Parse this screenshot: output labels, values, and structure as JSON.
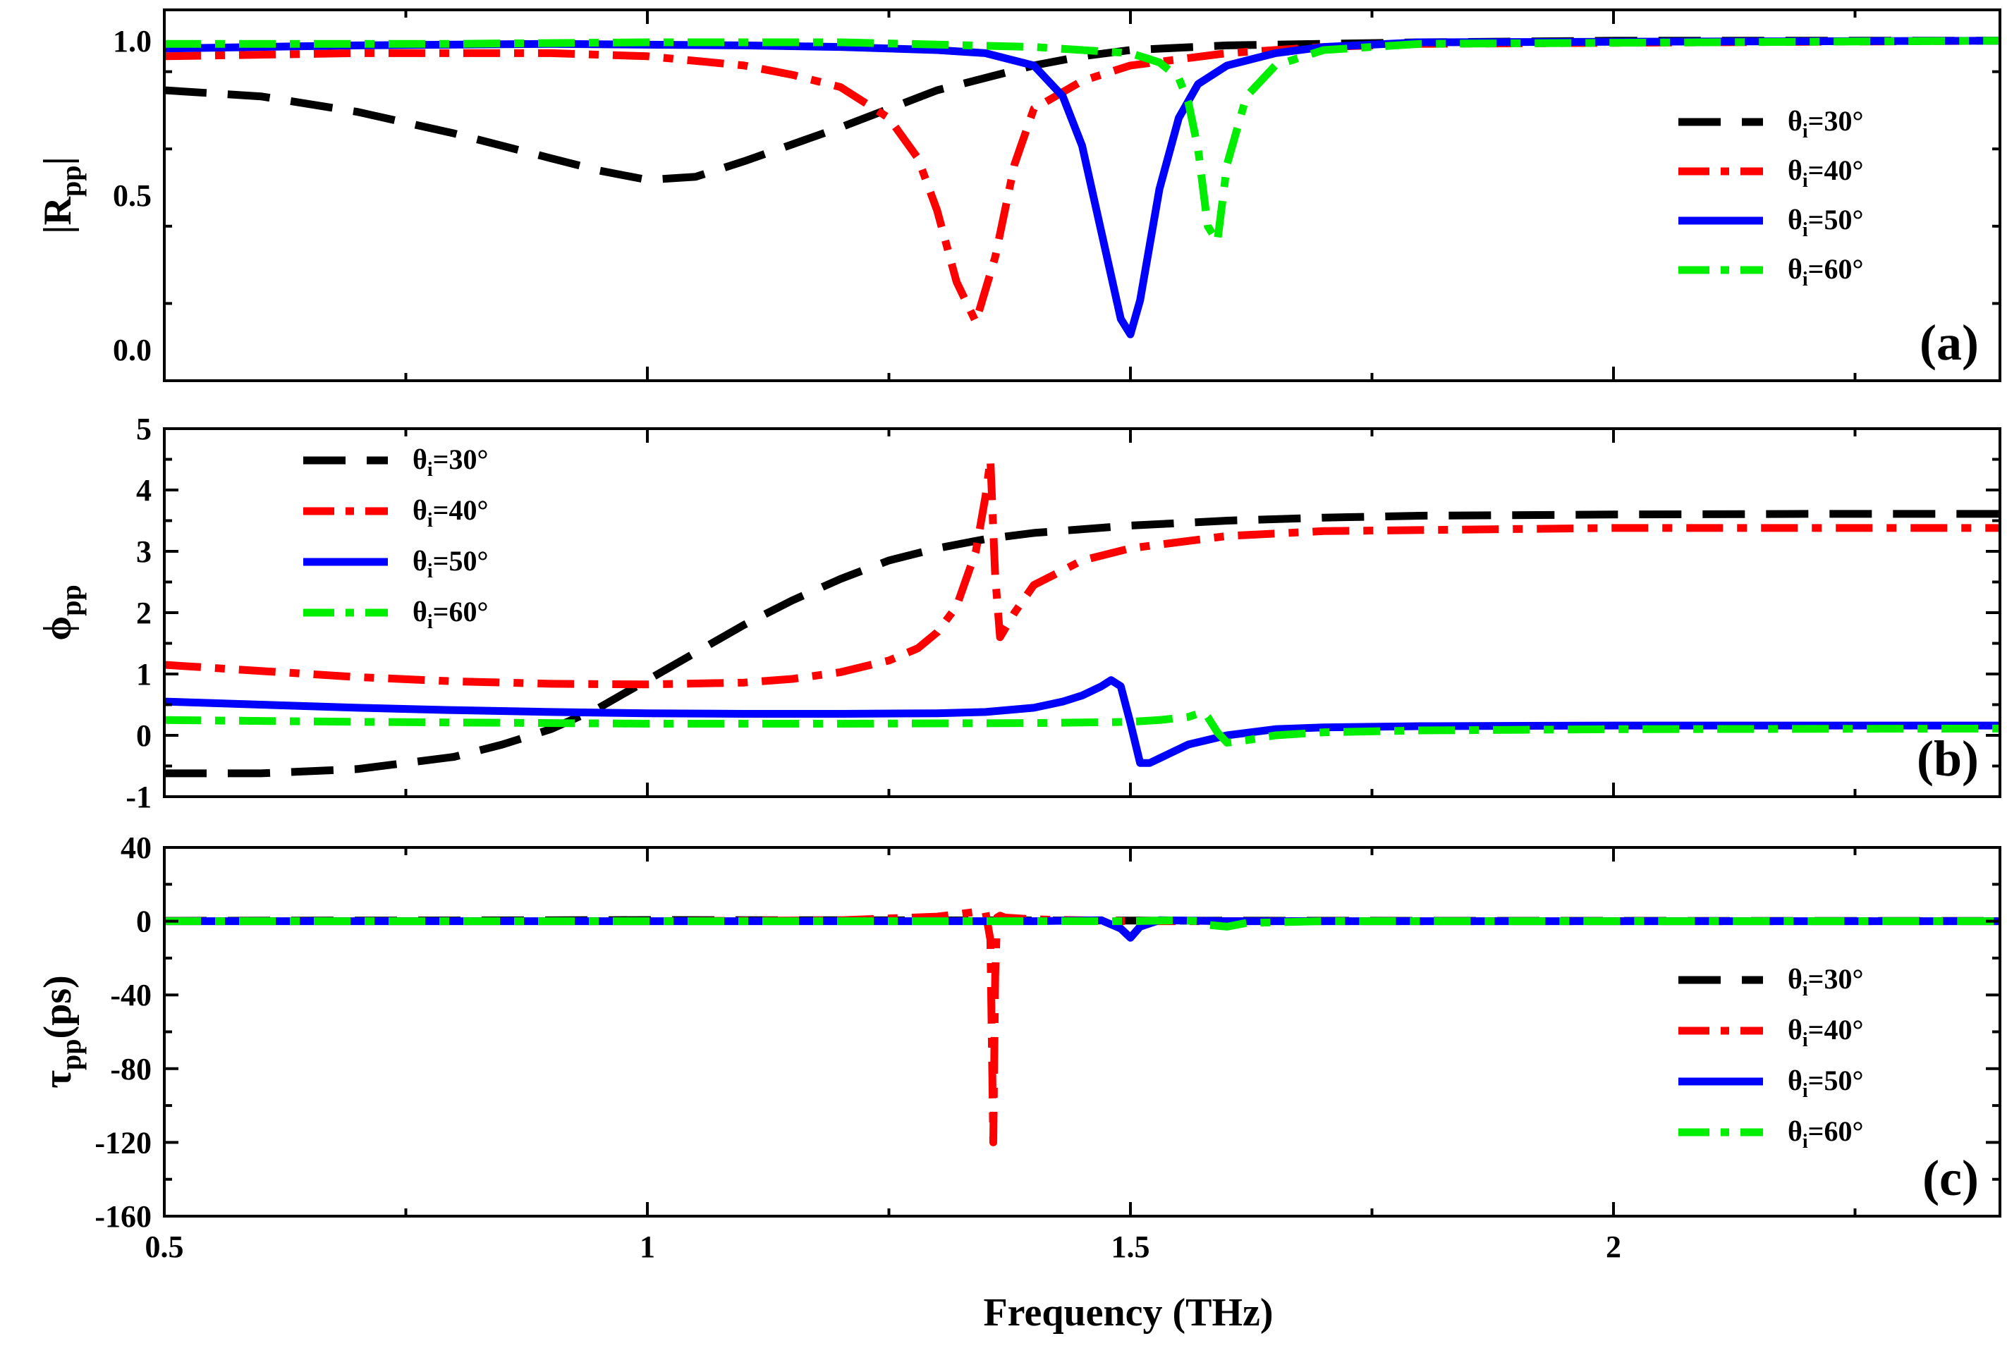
{
  "figure": {
    "xlabel": "Frequency (THz)",
    "colors": {
      "theta30": "#000000",
      "theta40": "#ff0000",
      "theta50": "#0000ff",
      "theta60": "#00ee00"
    }
  },
  "chart_data": [
    {
      "id": "a",
      "type": "line",
      "panel_label": "(a)",
      "ylabel": "|R",
      "ylabel_sub": "pp",
      "ylabel_suffix": "|",
      "xlabel": "Frequency (THz)",
      "xlim": [
        0.5,
        2.4
      ],
      "ylim": [
        -0.1,
        1.1
      ],
      "yticks": [
        0.0,
        0.5,
        1.0
      ],
      "ytick_labels": [
        "0.0",
        "0.5",
        "1.0"
      ],
      "legend": {
        "placement": "right",
        "entries": [
          {
            "series": "theta30",
            "text": "θ",
            "sub": "i",
            "value": "=30°"
          },
          {
            "series": "theta40",
            "text": "θ",
            "sub": "i",
            "value": "=40°"
          },
          {
            "series": "theta50",
            "text": "θ",
            "sub": "i",
            "value": "=50°"
          },
          {
            "series": "theta60",
            "text": "θ",
            "sub": "i",
            "value": "=60°"
          }
        ]
      },
      "series": [
        {
          "name": "θi=30°",
          "key": "theta30",
          "style": "dash",
          "x": [
            0.5,
            0.6,
            0.7,
            0.8,
            0.9,
            0.95,
            1.0,
            1.05,
            1.1,
            1.2,
            1.3,
            1.4,
            1.45,
            1.5,
            1.6,
            1.7,
            1.8,
            2.0,
            2.4
          ],
          "y": [
            0.84,
            0.82,
            0.77,
            0.7,
            0.62,
            0.58,
            0.55,
            0.56,
            0.61,
            0.72,
            0.84,
            0.92,
            0.95,
            0.97,
            0.985,
            0.99,
            0.995,
            1.0,
            1.0
          ]
        },
        {
          "name": "θi=40°",
          "key": "theta40",
          "style": "dashdot",
          "x": [
            0.5,
            0.7,
            0.9,
            1.0,
            1.1,
            1.15,
            1.2,
            1.25,
            1.28,
            1.3,
            1.32,
            1.34,
            1.36,
            1.38,
            1.4,
            1.45,
            1.5,
            1.6,
            1.7,
            1.8,
            2.4
          ],
          "y": [
            0.95,
            0.96,
            0.96,
            0.95,
            0.92,
            0.89,
            0.85,
            0.75,
            0.62,
            0.45,
            0.22,
            0.09,
            0.3,
            0.6,
            0.78,
            0.87,
            0.92,
            0.96,
            0.98,
            0.99,
            1.0
          ]
        },
        {
          "name": "θi=50°",
          "key": "theta50",
          "style": "solid",
          "x": [
            0.5,
            0.7,
            0.9,
            1.1,
            1.2,
            1.3,
            1.35,
            1.4,
            1.43,
            1.45,
            1.47,
            1.49,
            1.5,
            1.51,
            1.53,
            1.55,
            1.57,
            1.6,
            1.65,
            1.7,
            1.8,
            2.4
          ],
          "y": [
            0.975,
            0.985,
            0.99,
            0.985,
            0.98,
            0.97,
            0.96,
            0.92,
            0.82,
            0.66,
            0.38,
            0.1,
            0.05,
            0.16,
            0.52,
            0.75,
            0.86,
            0.92,
            0.96,
            0.98,
            0.995,
            1.0
          ]
        },
        {
          "name": "θi=60°",
          "key": "theta60",
          "style": "dashdot",
          "x": [
            0.5,
            0.8,
            1.0,
            1.2,
            1.4,
            1.5,
            1.53,
            1.55,
            1.56,
            1.57,
            1.58,
            1.59,
            1.6,
            1.62,
            1.65,
            1.7,
            1.8,
            2.4
          ],
          "y": [
            0.99,
            0.99,
            0.995,
            0.995,
            0.98,
            0.96,
            0.93,
            0.88,
            0.8,
            0.65,
            0.4,
            0.35,
            0.6,
            0.82,
            0.92,
            0.97,
            0.99,
            1.0
          ]
        }
      ]
    },
    {
      "id": "b",
      "type": "line",
      "panel_label": "(b)",
      "ylabel": "ϕ",
      "ylabel_sub": "pp",
      "ylabel_suffix": "",
      "xlabel": "Frequency (THz)",
      "xlim": [
        0.5,
        2.4
      ],
      "ylim": [
        -1,
        5
      ],
      "yticks": [
        -1,
        0,
        1,
        2,
        3,
        4,
        5
      ],
      "ytick_labels": [
        "-1",
        "0",
        "1",
        "2",
        "3",
        "4",
        "5"
      ],
      "legend": {
        "placement": "top-left",
        "entries": [
          {
            "series": "theta30",
            "text": "θ",
            "sub": "i",
            "value": "=30°"
          },
          {
            "series": "theta40",
            "text": "θ",
            "sub": "i",
            "value": "=40°"
          },
          {
            "series": "theta50",
            "text": "θ",
            "sub": "i",
            "value": "=50°"
          },
          {
            "series": "theta60",
            "text": "θ",
            "sub": "i",
            "value": "=60°"
          }
        ]
      },
      "series": [
        {
          "name": "θi=30°",
          "key": "theta30",
          "style": "dash",
          "x": [
            0.5,
            0.6,
            0.7,
            0.8,
            0.85,
            0.9,
            0.95,
            1.0,
            1.05,
            1.1,
            1.15,
            1.2,
            1.25,
            1.3,
            1.35,
            1.4,
            1.5,
            1.6,
            1.7,
            1.8,
            2.0,
            2.2,
            2.4
          ],
          "y": [
            -0.62,
            -0.62,
            -0.55,
            -0.35,
            -0.15,
            0.1,
            0.45,
            0.9,
            1.35,
            1.8,
            2.2,
            2.55,
            2.85,
            3.05,
            3.2,
            3.3,
            3.42,
            3.5,
            3.55,
            3.58,
            3.6,
            3.61,
            3.61
          ]
        },
        {
          "name": "θi=40°",
          "key": "theta40",
          "style": "dashdot",
          "x": [
            0.5,
            0.6,
            0.7,
            0.8,
            0.9,
            1.0,
            1.1,
            1.15,
            1.2,
            1.25,
            1.28,
            1.3,
            1.32,
            1.34,
            1.35,
            1.355,
            1.36,
            1.365,
            1.38,
            1.4,
            1.45,
            1.5,
            1.6,
            1.7,
            2.0,
            2.4
          ],
          "y": [
            1.15,
            1.05,
            0.95,
            0.88,
            0.84,
            0.83,
            0.86,
            0.92,
            1.03,
            1.22,
            1.42,
            1.68,
            2.1,
            3.0,
            3.9,
            4.5,
            2.6,
            1.6,
            2.0,
            2.45,
            2.85,
            3.05,
            3.25,
            3.33,
            3.38,
            3.38
          ]
        },
        {
          "name": "θi=50°",
          "key": "theta50",
          "style": "solid",
          "x": [
            0.5,
            0.6,
            0.7,
            0.8,
            0.9,
            1.0,
            1.1,
            1.2,
            1.3,
            1.35,
            1.4,
            1.43,
            1.45,
            1.47,
            1.48,
            1.49,
            1.5,
            1.51,
            1.52,
            1.54,
            1.56,
            1.6,
            1.65,
            1.7,
            1.8,
            2.0,
            2.4
          ],
          "y": [
            0.55,
            0.5,
            0.45,
            0.41,
            0.38,
            0.36,
            0.35,
            0.35,
            0.36,
            0.38,
            0.45,
            0.55,
            0.65,
            0.8,
            0.9,
            0.8,
            0.2,
            -0.45,
            -0.45,
            -0.3,
            -0.15,
            0.0,
            0.1,
            0.13,
            0.15,
            0.16,
            0.16
          ]
        },
        {
          "name": "θi=60°",
          "key": "theta60",
          "style": "dashdot",
          "x": [
            0.5,
            0.7,
            0.9,
            1.0,
            1.2,
            1.4,
            1.5,
            1.53,
            1.56,
            1.575,
            1.58,
            1.59,
            1.6,
            1.62,
            1.65,
            1.7,
            1.8,
            2.0,
            2.4
          ],
          "y": [
            0.25,
            0.22,
            0.2,
            0.19,
            0.19,
            0.2,
            0.22,
            0.25,
            0.3,
            0.38,
            0.3,
            0.05,
            -0.12,
            -0.08,
            0.0,
            0.05,
            0.08,
            0.1,
            0.11
          ]
        }
      ]
    },
    {
      "id": "c",
      "type": "line",
      "panel_label": "(c)",
      "ylabel": "τ",
      "ylabel_sub": "pp",
      "ylabel_suffix": "(ps)",
      "xlabel": "Frequency (THz)",
      "xlim": [
        0.5,
        2.4
      ],
      "ylim": [
        -160,
        40
      ],
      "yticks": [
        -160,
        -120,
        -80,
        -40,
        0,
        40
      ],
      "ytick_labels": [
        "-160",
        "-120",
        "-80",
        "-40",
        "0",
        "40"
      ],
      "xticks": [
        0.5,
        1,
        1.5,
        2
      ],
      "xtick_labels": [
        "0.5",
        "1",
        "1.5",
        "2"
      ],
      "legend": {
        "placement": "bottom-right",
        "entries": [
          {
            "series": "theta30",
            "text": "θ",
            "sub": "i",
            "value": "=30°"
          },
          {
            "series": "theta40",
            "text": "θ",
            "sub": "i",
            "value": "=40°"
          },
          {
            "series": "theta50",
            "text": "θ",
            "sub": "i",
            "value": "=50°"
          },
          {
            "series": "theta60",
            "text": "θ",
            "sub": "i",
            "value": "=60°"
          }
        ]
      },
      "series": [
        {
          "name": "θi=30°",
          "key": "theta30",
          "style": "dash",
          "x": [
            0.5,
            0.8,
            1.0,
            1.2,
            1.5,
            1.8,
            2.4
          ],
          "y": [
            0.2,
            0.4,
            0.6,
            0.5,
            0.3,
            0.2,
            0.1
          ]
        },
        {
          "name": "θi=40°",
          "key": "theta40",
          "style": "dashdot",
          "x": [
            0.5,
            1.0,
            1.2,
            1.3,
            1.34,
            1.35,
            1.355,
            1.358,
            1.36,
            1.362,
            1.365,
            1.37,
            1.4,
            1.5,
            2.4
          ],
          "y": [
            0,
            0,
            0.5,
            2.5,
            5,
            5,
            -10,
            -120,
            -30,
            2,
            3,
            2,
            1,
            0,
            0
          ]
        },
        {
          "name": "θi=50°",
          "key": "theta50",
          "style": "solid",
          "x": [
            0.5,
            1.0,
            1.4,
            1.47,
            1.49,
            1.5,
            1.51,
            1.53,
            1.6,
            2.4
          ],
          "y": [
            0,
            0,
            0,
            0.5,
            -4,
            -9,
            -3,
            0.5,
            0,
            0
          ]
        },
        {
          "name": "θi=60°",
          "key": "theta60",
          "style": "dashdot",
          "x": [
            0.5,
            1.0,
            1.5,
            1.55,
            1.57,
            1.58,
            1.6,
            1.62,
            1.7,
            2.4
          ],
          "y": [
            0,
            0,
            0,
            0.5,
            0,
            -2,
            -3,
            -1,
            0,
            0
          ]
        }
      ]
    }
  ]
}
